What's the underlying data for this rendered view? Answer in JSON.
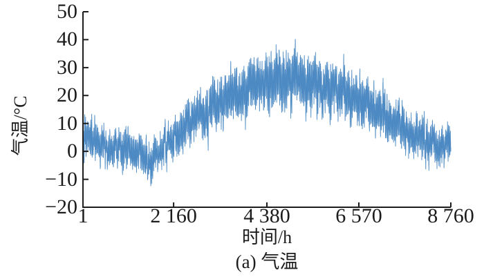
{
  "figure": {
    "caption": "(a) 气温",
    "background": "#ffffff",
    "text_color": "#1c1c1c",
    "axis_color": "#1c1c1c"
  },
  "chart_data": {
    "type": "line",
    "title": "",
    "xlabel": "时间/h",
    "ylabel": "气温/°C",
    "xlim": [
      1,
      8760
    ],
    "ylim": [
      -20,
      50
    ],
    "grid": false,
    "legend": false,
    "spines": [
      "left",
      "bottom"
    ],
    "tick_direction": "in",
    "x_ticks": {
      "values": [
        1,
        2160,
        4380,
        6570,
        8760
      ],
      "labels": [
        "1",
        "2 160",
        "4 380",
        "6 570",
        "8 760"
      ]
    },
    "y_ticks": {
      "values": [
        -20,
        -10,
        0,
        10,
        20,
        30,
        40,
        50
      ],
      "labels": [
        "−20",
        "−10",
        "0",
        "10",
        "20",
        "30",
        "40",
        "50"
      ]
    },
    "series": [
      {
        "name": "气温",
        "color": "#4d8ac3",
        "stroke_width": 0.9,
        "sampling_hours": 1,
        "seasonal_mean": {
          "hours": [
            1,
            300,
            600,
            900,
            1200,
            1500,
            1700,
            2000,
            2300,
            2600,
            2900,
            3200,
            3500,
            3800,
            4100,
            4400,
            4700,
            5000,
            5300,
            5600,
            5900,
            6200,
            6500,
            6800,
            7100,
            7400,
            7700,
            8000,
            8300,
            8760
          ],
          "temps_c": [
            5,
            4,
            1,
            3,
            1,
            -2,
            -3,
            3,
            7,
            11,
            14,
            17,
            19,
            22,
            24,
            24,
            25,
            26,
            25,
            24,
            22,
            21,
            19,
            16,
            14,
            12,
            9,
            6,
            4,
            3
          ]
        },
        "diurnal_amplitude_c": {
          "base": 4,
          "per_degree_mean": 0.12,
          "peak_hour": 17
        },
        "weather_noise": {
          "ar1_phi": 0.94,
          "sigma_c": 1.5
        },
        "hourly_jitter_c": 1.0,
        "clamp_c": [
          -12.5,
          41
        ],
        "observed_extremes": {
          "max_c": 41,
          "max_near_hour": 3900,
          "min_c": -12,
          "min_near_hour": 1600
        },
        "rng_seed": 7
      }
    ]
  }
}
